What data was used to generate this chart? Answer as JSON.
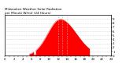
{
  "bg_color": "#ffffff",
  "fill_color": "#ff0000",
  "line_color": "#cc0000",
  "grid_color": "#bbbbbb",
  "num_points": 1440,
  "sunrise": 330,
  "sunset": 1150,
  "peak_minute": 750,
  "peak_value": 850,
  "xlim": [
    0,
    1440
  ],
  "ylim": [
    0,
    950
  ],
  "sigma_rise": 170,
  "sigma_set": 220,
  "vline_positions": [
    720,
    780,
    840
  ],
  "ytick_values": [
    0,
    95,
    190,
    285,
    380,
    475,
    570,
    665,
    760,
    855
  ],
  "ytick_labels": [
    "0",
    "1",
    "2",
    "3",
    "4",
    "5",
    "6",
    "7",
    "8",
    "9"
  ],
  "title_line1": "Milwaukee Weather Solar Radiation",
  "title_line2": "per Minute W/m2 (24 Hours)",
  "title_fontsize": 3.0,
  "tick_fontsize": 2.8,
  "border_color": "#000000"
}
